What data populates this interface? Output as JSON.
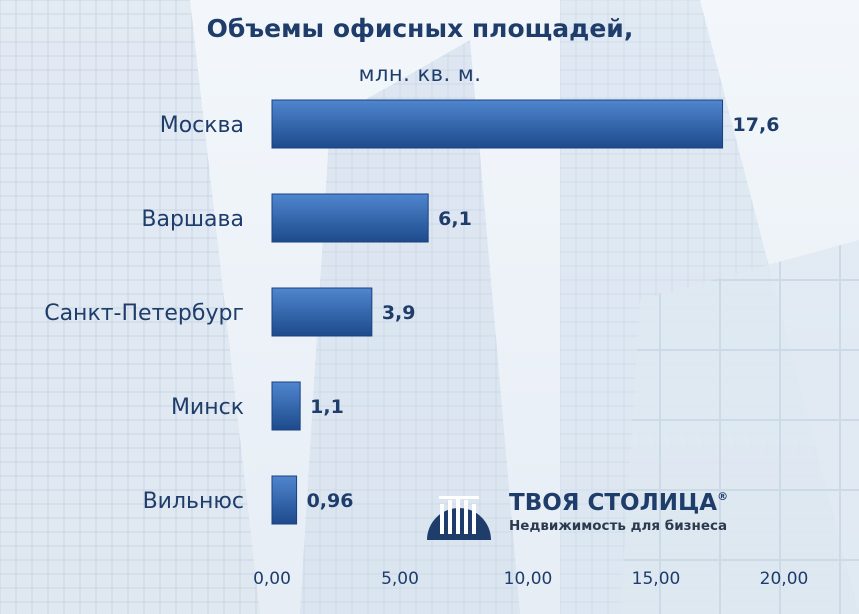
{
  "title": "Объемы офисных площадей,",
  "subtitle": "млн. кв. м.",
  "chart_data": {
    "type": "bar",
    "orientation": "horizontal",
    "categories": [
      "Москва",
      "Варшава",
      "Санкт-Петербург",
      "Минск",
      "Вильнюс"
    ],
    "values": [
      17.6,
      6.1,
      3.9,
      1.1,
      0.96
    ],
    "value_labels": [
      "17,6",
      "6,1",
      "3,9",
      "1,1",
      "0,96"
    ],
    "xlim": [
      0,
      20
    ],
    "x_ticks": [
      0,
      5,
      10,
      15,
      20
    ],
    "x_tick_labels": [
      "0,00",
      "5,00",
      "10,00",
      "15,00",
      "20,00"
    ],
    "grid": false,
    "legend": "none",
    "bar_color": "#2d5fa6"
  },
  "logo": {
    "name": "ТВОЯ СТОЛИЦА",
    "registered": "®",
    "tagline": "Недвижимость для бизнеса"
  },
  "colors": {
    "text": "#1f3d6b",
    "bar_light": "#4f86cf",
    "bar_dark": "#1d4a8c"
  }
}
